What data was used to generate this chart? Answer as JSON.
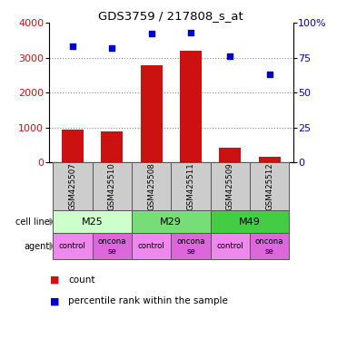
{
  "title": "GDS3759 / 217808_s_at",
  "samples": [
    "GSM425507",
    "GSM425510",
    "GSM425508",
    "GSM425511",
    "GSM425509",
    "GSM425512"
  ],
  "counts": [
    950,
    880,
    2780,
    3200,
    420,
    150
  ],
  "percentiles": [
    83,
    82,
    92,
    93,
    76,
    63
  ],
  "cell_lines": [
    {
      "label": "M25",
      "span": [
        0,
        2
      ],
      "color": "#ccffcc"
    },
    {
      "label": "M29",
      "span": [
        2,
        4
      ],
      "color": "#77dd77"
    },
    {
      "label": "M49",
      "span": [
        4,
        6
      ],
      "color": "#44cc44"
    }
  ],
  "agents": [
    "control",
    "onconase",
    "control",
    "onconase",
    "control",
    "onconase"
  ],
  "agent_color_control": "#ee88ee",
  "agent_color_onconase": "#dd66dd",
  "bar_color": "#cc1111",
  "scatter_color": "#0000cc",
  "left_ylim": [
    0,
    4000
  ],
  "left_yticks": [
    0,
    1000,
    2000,
    3000,
    4000
  ],
  "right_ylim": [
    0,
    100
  ],
  "right_yticks": [
    0,
    25,
    50,
    75,
    100
  ],
  "grid_color": "#888888",
  "sample_bg_color": "#cccccc",
  "legend_count_color": "#cc1111",
  "legend_pct_color": "#0000cc"
}
